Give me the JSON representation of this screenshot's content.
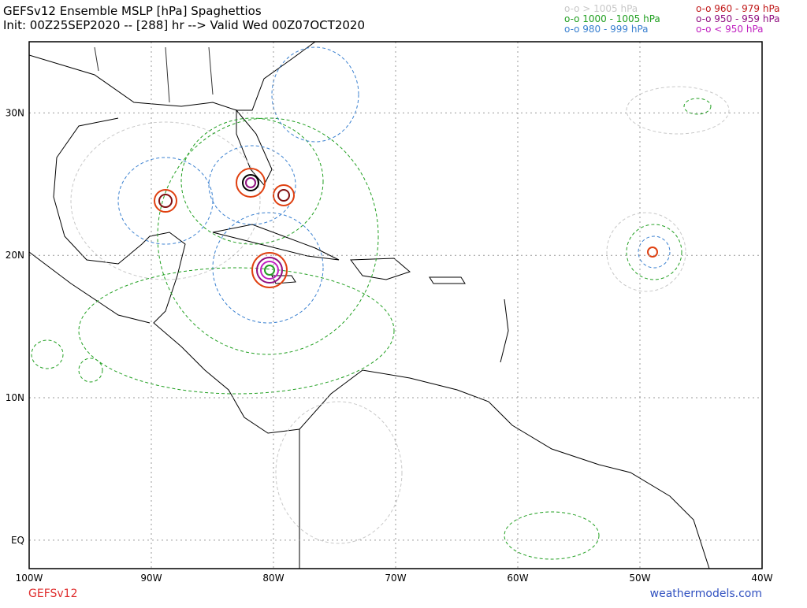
{
  "header": {
    "title": "GEFSv12 Ensemble MSLP [hPa] Spaghettios",
    "subtitle": "Init: 00Z25SEP2020 -- [288] hr --> Valid Wed 00Z07OCT2020"
  },
  "legend": [
    {
      "label": "o-o > 1005 hPa",
      "color": "#c8c8c8"
    },
    {
      "label": "o-o 1000 - 1005 hPa",
      "color": "#22a022"
    },
    {
      "label": "o-o 980 - 999 hPa",
      "color": "#3a80d0"
    },
    {
      "label": "o-o 960 - 979 hPa",
      "color": "#c01818"
    },
    {
      "label": "o-o 950 - 959 hPa",
      "color": "#901080"
    },
    {
      "label": "o-o < 950 hPa",
      "color": "#c020c0"
    }
  ],
  "map": {
    "xlim": [
      -100,
      -40
    ],
    "ylim": [
      -2,
      35
    ],
    "xticks": [
      {
        "value": -100,
        "label": "100W"
      },
      {
        "value": -90,
        "label": "90W"
      },
      {
        "value": -80,
        "label": "80W"
      },
      {
        "value": -70,
        "label": "70W"
      },
      {
        "value": -60,
        "label": "60W"
      },
      {
        "value": -50,
        "label": "50W"
      },
      {
        "value": -40,
        "label": "40W"
      }
    ],
    "yticks": [
      {
        "value": 30,
        "label": "30N"
      },
      {
        "value": 20,
        "label": "20N"
      },
      {
        "value": 10,
        "label": "10N"
      },
      {
        "value": 0,
        "label": "EQ"
      }
    ]
  },
  "footer": {
    "left": "GEFSv12",
    "right": "weathermodels.com"
  }
}
